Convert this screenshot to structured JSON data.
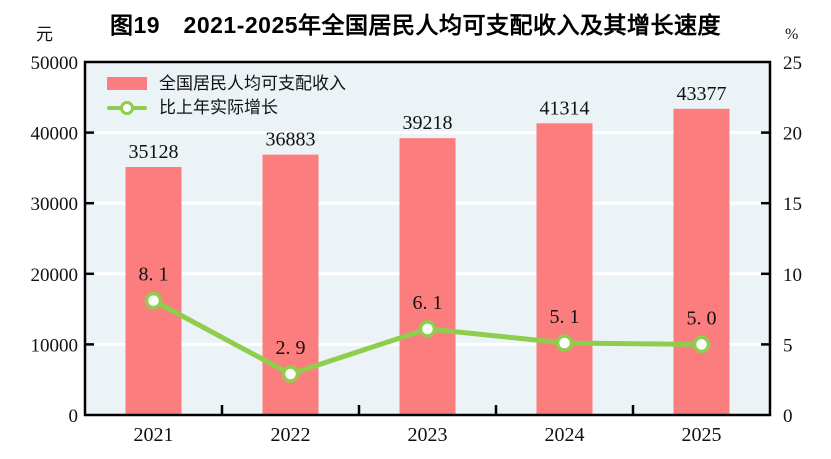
{
  "title": "图19　2021-2025年全国居民人均可支配收入及其增长速度",
  "colors": {
    "bar": "#FB7D7D",
    "line": "#8FCE4D",
    "marker_fill": "#FFFFFF",
    "plot_background": "#EBF3F7",
    "gridline": "#FFFFFF",
    "axis": "#000000",
    "text": "#111111"
  },
  "legend": {
    "items": [
      {
        "label": "全国居民人均可支配收入",
        "swatch": "bar-swatch"
      },
      {
        "label": "比上年实际增长",
        "swatch": "line-swatch"
      }
    ]
  },
  "chart_data": {
    "type": "bar",
    "subtype": "bar-line-combo",
    "title": "图19　2021-2025年全国居民人均可支配收入及其增长速度",
    "categories": [
      "2021",
      "2022",
      "2023",
      "2024",
      "2025"
    ],
    "series": [
      {
        "name": "全国居民人均可支配收入",
        "type": "bar",
        "axis": "left",
        "values": [
          35128,
          36883,
          39218,
          41314,
          43377
        ],
        "labels": [
          "35128",
          "36883",
          "39218",
          "41314",
          "43377"
        ]
      },
      {
        "name": "比上年实际增长",
        "type": "line",
        "axis": "right",
        "values": [
          8.1,
          2.9,
          6.1,
          5.1,
          5.0
        ],
        "labels": [
          "8. 1",
          "2. 9",
          "6. 1",
          "5. 1",
          "5. 0"
        ]
      }
    ],
    "left_axis": {
      "unit": "元",
      "min": 0,
      "max": 50000,
      "ticks": [
        0,
        10000,
        20000,
        30000,
        40000,
        50000
      ]
    },
    "right_axis": {
      "unit": "%",
      "min": 0,
      "max": 25,
      "ticks": [
        0,
        5,
        10,
        15,
        20,
        25
      ]
    },
    "grid": true,
    "gridlines": "horizontal-white",
    "legend_position": "top-left-inside"
  }
}
